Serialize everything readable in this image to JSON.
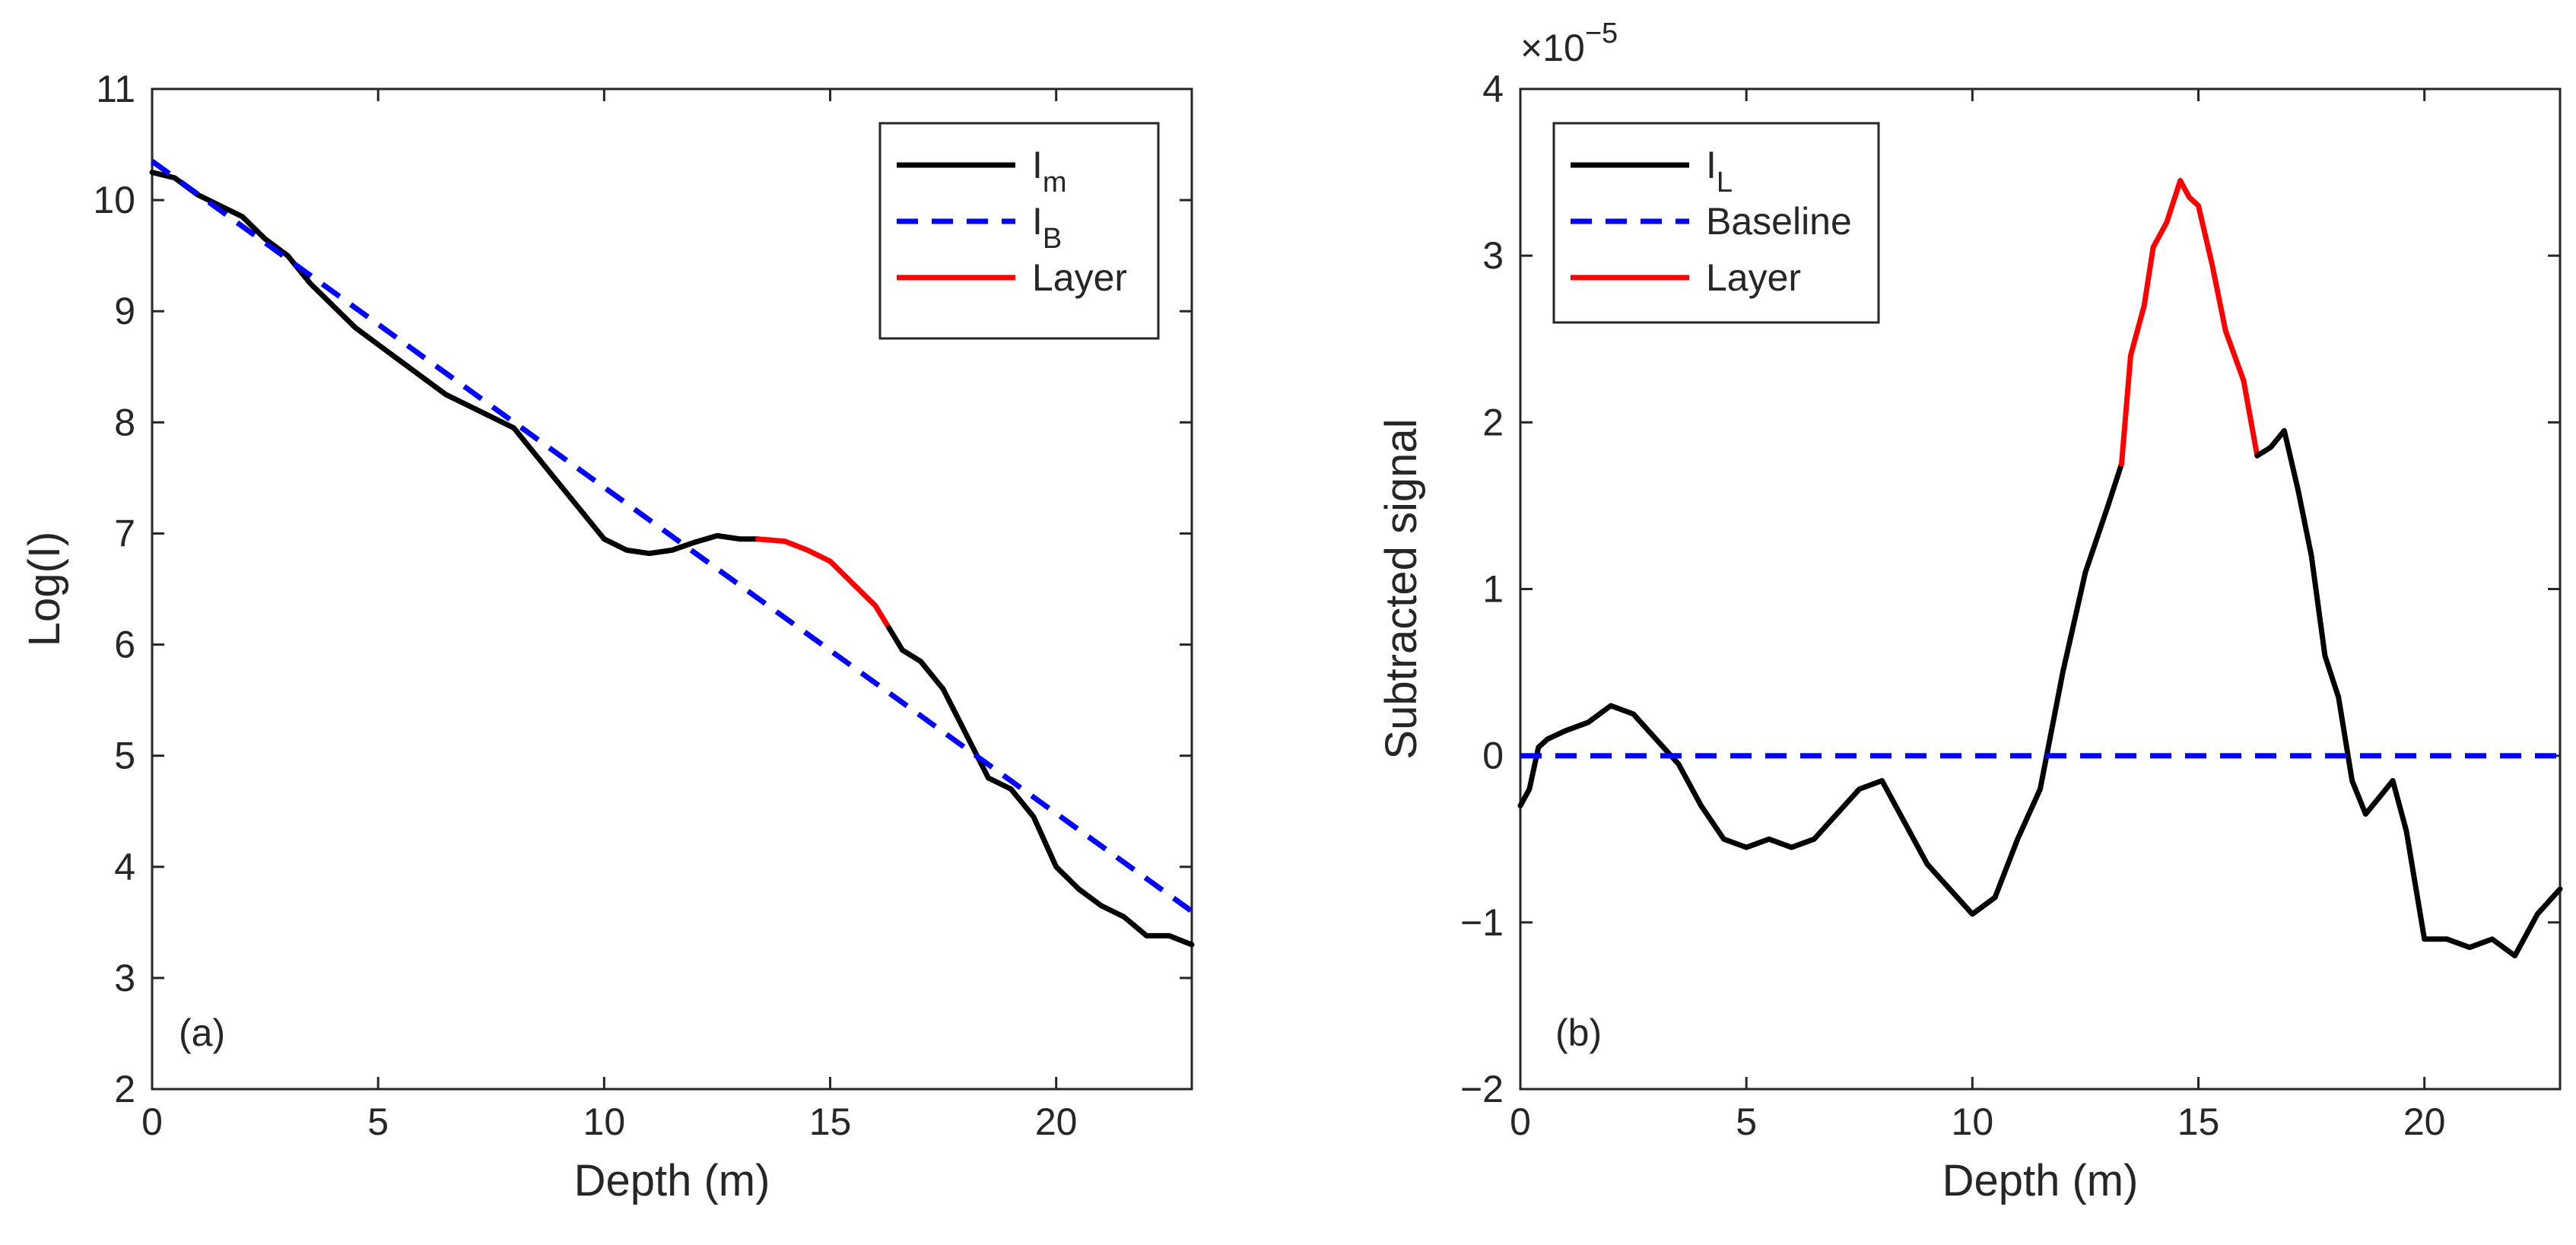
{
  "chart_data": [
    {
      "type": "line",
      "panel_label": "(a)",
      "xlabel": "Depth (m)",
      "ylabel": "Log(I)",
      "xlim": [
        0,
        23
      ],
      "ylim": [
        2,
        11
      ],
      "xticks": [
        0,
        5,
        10,
        15,
        20
      ],
      "yticks": [
        2,
        3,
        4,
        5,
        6,
        7,
        8,
        9,
        10,
        11
      ],
      "grid": false,
      "legend_position": "top-right",
      "legend": [
        {
          "label": "I",
          "sub": "m",
          "color": "#000000",
          "dash": "solid"
        },
        {
          "label": "I",
          "sub": "B",
          "color": "#0000ff",
          "dash": "dashed"
        },
        {
          "label": "Layer",
          "sub": "",
          "color": "#ff0000",
          "dash": "solid"
        }
      ],
      "series": [
        {
          "name": "Im",
          "color": "#000000",
          "dash": "solid",
          "x": [
            0,
            0.5,
            1,
            1.5,
            2,
            2.5,
            3,
            3.5,
            4,
            4.5,
            5,
            5.5,
            6,
            6.5,
            7,
            7.5,
            8,
            8.5,
            9,
            9.5,
            10,
            10.5,
            11,
            11.5,
            12,
            12.5,
            13,
            13.4
          ],
          "y": [
            10.25,
            10.2,
            10.05,
            9.95,
            9.85,
            9.65,
            9.5,
            9.25,
            9.05,
            8.85,
            8.7,
            8.55,
            8.4,
            8.25,
            8.15,
            8.05,
            7.95,
            7.7,
            7.45,
            7.2,
            6.95,
            6.85,
            6.82,
            6.85,
            6.92,
            6.98,
            6.95,
            6.95
          ]
        },
        {
          "name": "Layer",
          "color": "#ff0000",
          "dash": "solid",
          "x": [
            13.4,
            14,
            14.5,
            15,
            15.5,
            16,
            16.3
          ],
          "y": [
            6.95,
            6.93,
            6.85,
            6.75,
            6.55,
            6.35,
            6.15
          ]
        },
        {
          "name": "Im",
          "color": "#000000",
          "dash": "solid",
          "x": [
            16.3,
            16.6,
            17,
            17.5,
            18,
            18.5,
            19,
            19.5,
            20,
            20.5,
            21,
            21.5,
            22,
            22.5,
            23
          ],
          "y": [
            6.15,
            5.95,
            5.85,
            5.6,
            5.2,
            4.8,
            4.7,
            4.45,
            4.0,
            3.8,
            3.65,
            3.55,
            3.38,
            3.38,
            3.3
          ]
        },
        {
          "name": "IB",
          "color": "#0000ff",
          "dash": "dashed",
          "x": [
            0,
            23
          ],
          "y": [
            10.35,
            3.6
          ]
        }
      ]
    },
    {
      "type": "line",
      "panel_label": "(b)",
      "exponent_label": "×10",
      "exponent_power": "−5",
      "xlabel": "Depth (m)",
      "ylabel": "Subtracted signal",
      "xlim": [
        0,
        23
      ],
      "ylim": [
        -2,
        4
      ],
      "xticks": [
        0,
        5,
        10,
        15,
        20
      ],
      "yticks": [
        -2,
        -1,
        0,
        1,
        2,
        3,
        4
      ],
      "ytick_labels": [
        "−2",
        "−1",
        "0",
        "1",
        "2",
        "3",
        "4"
      ],
      "grid": false,
      "legend_position": "top-left",
      "legend": [
        {
          "label": "I",
          "sub": "L",
          "color": "#000000",
          "dash": "solid"
        },
        {
          "label": "Baseline",
          "sub": "",
          "color": "#0000ff",
          "dash": "dashed"
        },
        {
          "label": "Layer",
          "sub": "",
          "color": "#ff0000",
          "dash": "solid"
        }
      ],
      "series": [
        {
          "name": "IL",
          "color": "#000000",
          "dash": "solid",
          "x": [
            0,
            0.2,
            0.4,
            0.6,
            1,
            1.5,
            2,
            2.5,
            3,
            3.5,
            4,
            4.5,
            5,
            5.5,
            6,
            6.5,
            7,
            7.5,
            8,
            8.5,
            9,
            9.5,
            10,
            10.5,
            11,
            11.5,
            12,
            12.5,
            13,
            13.3
          ],
          "y": [
            -0.3,
            -0.2,
            0.05,
            0.1,
            0.15,
            0.2,
            0.3,
            0.25,
            0.1,
            -0.05,
            -0.3,
            -0.5,
            -0.55,
            -0.5,
            -0.55,
            -0.5,
            -0.35,
            -0.2,
            -0.15,
            -0.4,
            -0.65,
            -0.8,
            -0.95,
            -0.85,
            -0.5,
            -0.2,
            0.5,
            1.1,
            1.5,
            1.75
          ]
        },
        {
          "name": "Layer",
          "color": "#ff0000",
          "dash": "solid",
          "x": [
            13.3,
            13.5,
            13.8,
            14,
            14.3,
            14.6,
            14.8,
            15,
            15.3,
            15.6,
            16,
            16.3
          ],
          "y": [
            1.75,
            2.4,
            2.7,
            3.05,
            3.2,
            3.45,
            3.35,
            3.3,
            2.95,
            2.55,
            2.25,
            1.8
          ]
        },
        {
          "name": "IL",
          "color": "#000000",
          "dash": "solid",
          "x": [
            16.3,
            16.6,
            16.9,
            17.2,
            17.5,
            17.8,
            18.1,
            18.4,
            18.7,
            19,
            19.3,
            19.6,
            20,
            20.5,
            21,
            21.5,
            22,
            22.5,
            23
          ],
          "y": [
            1.8,
            1.85,
            1.95,
            1.6,
            1.2,
            0.6,
            0.35,
            -0.15,
            -0.35,
            -0.25,
            -0.15,
            -0.45,
            -1.1,
            -1.1,
            -1.15,
            -1.1,
            -1.2,
            -0.95,
            -0.8
          ]
        },
        {
          "name": "Baseline",
          "color": "#0000ff",
          "dash": "dashed",
          "x": [
            0,
            23
          ],
          "y": [
            0,
            0
          ]
        }
      ]
    }
  ]
}
